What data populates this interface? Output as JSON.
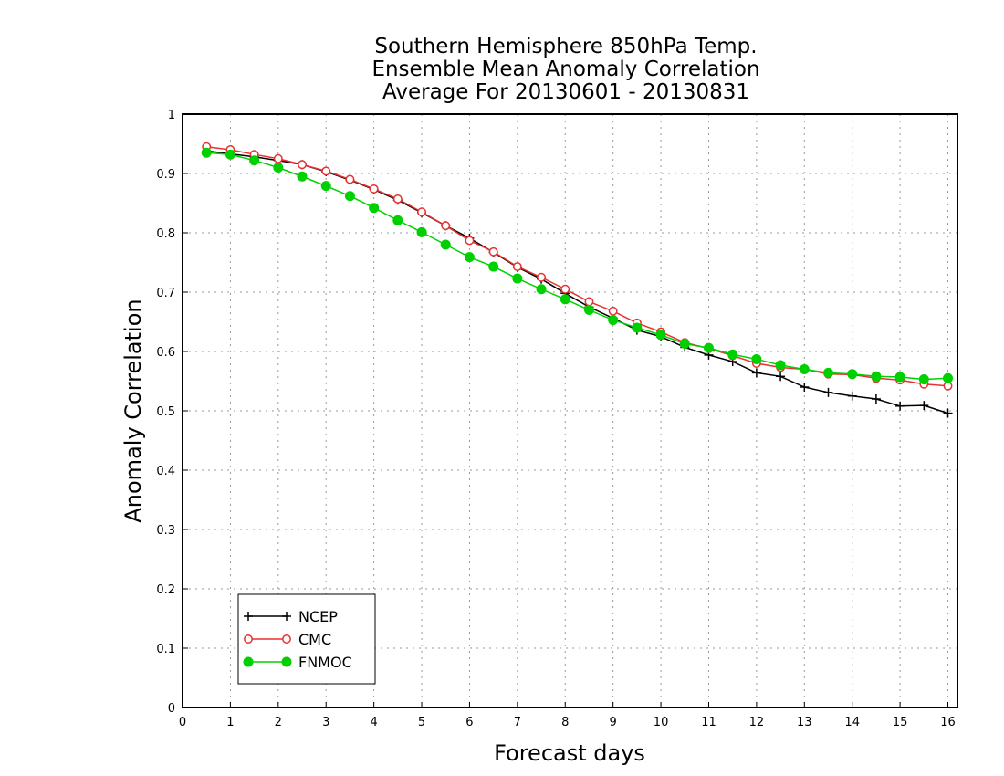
{
  "chart_data": {
    "type": "line",
    "title": [
      "Southern Hemisphere 850hPa Temp.",
      "Ensemble Mean Anomaly Correlation",
      "Average For 20130601 - 20130831"
    ],
    "xlabel": "Forecast days",
    "ylabel": "Anomaly Correlation",
    "xlim": [
      0,
      16.2
    ],
    "ylim": [
      0,
      1
    ],
    "xticks": [
      0,
      1,
      2,
      3,
      4,
      5,
      6,
      7,
      8,
      9,
      10,
      11,
      12,
      13,
      14,
      15,
      16
    ],
    "yticks": [
      0,
      0.1,
      0.2,
      0.3,
      0.4,
      0.5,
      0.6,
      0.7,
      0.8,
      0.9,
      1
    ],
    "grid": true,
    "legend_position": "bottom-left",
    "x": [
      0.5,
      1,
      1.5,
      2,
      2.5,
      3,
      3.5,
      4,
      4.5,
      5,
      5.5,
      6,
      6.5,
      7,
      7.5,
      8,
      8.5,
      9,
      9.5,
      10,
      10.5,
      11,
      11.5,
      12,
      12.5,
      13,
      13.5,
      14,
      14.5,
      15,
      15.5,
      16
    ],
    "series": [
      {
        "name": "NCEP",
        "color": "#000000",
        "marker": "plus",
        "values": [
          0.938,
          0.933,
          0.928,
          0.922,
          0.915,
          0.903,
          0.889,
          0.873,
          0.855,
          0.834,
          0.812,
          0.791,
          0.767,
          0.742,
          0.722,
          0.698,
          0.675,
          0.656,
          0.636,
          0.625,
          0.607,
          0.594,
          0.583,
          0.564,
          0.558,
          0.54,
          0.531,
          0.525,
          0.52,
          0.508,
          0.509,
          0.496
        ]
      },
      {
        "name": "CMC",
        "color": "#e83030",
        "marker": "open-circle",
        "values": [
          0.945,
          0.94,
          0.932,
          0.925,
          0.915,
          0.904,
          0.89,
          0.874,
          0.857,
          0.835,
          0.812,
          0.787,
          0.768,
          0.743,
          0.725,
          0.705,
          0.684,
          0.668,
          0.648,
          0.633,
          0.615,
          0.605,
          0.593,
          0.58,
          0.573,
          0.57,
          0.562,
          0.561,
          0.555,
          0.552,
          0.545,
          0.542
        ]
      },
      {
        "name": "FNMOC",
        "color": "#00d000",
        "marker": "filled-circle",
        "values": [
          0.935,
          0.932,
          0.922,
          0.91,
          0.895,
          0.879,
          0.862,
          0.842,
          0.821,
          0.801,
          0.78,
          0.759,
          0.743,
          0.723,
          0.705,
          0.688,
          0.67,
          0.653,
          0.64,
          0.628,
          0.613,
          0.606,
          0.595,
          0.587,
          0.577,
          0.57,
          0.564,
          0.562,
          0.558,
          0.557,
          0.553,
          0.555
        ]
      }
    ]
  }
}
